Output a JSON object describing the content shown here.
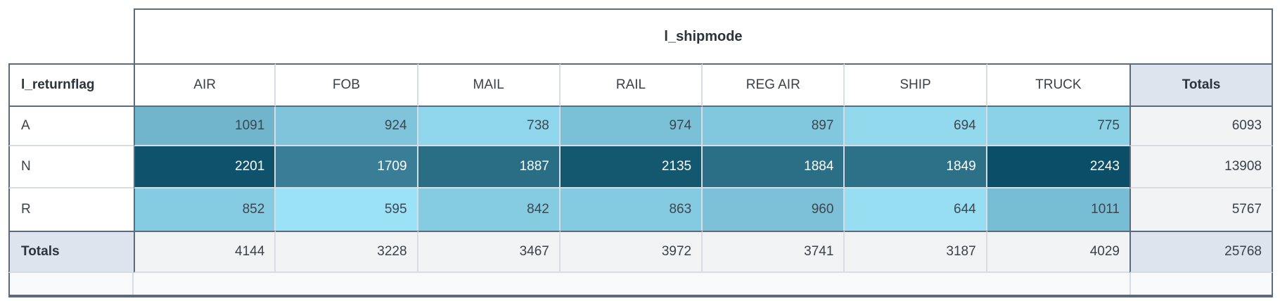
{
  "chart_data": {
    "type": "heatmap",
    "title": "l_shipmode",
    "row_dimension": "l_returnflag",
    "column_dimension": "l_shipmode",
    "columns": [
      "AIR",
      "FOB",
      "MAIL",
      "RAIL",
      "REG AIR",
      "SHIP",
      "TRUCK"
    ],
    "rows": [
      "A",
      "N",
      "R"
    ],
    "values": [
      [
        1091,
        924,
        738,
        974,
        897,
        694,
        775
      ],
      [
        2201,
        1709,
        1887,
        2135,
        1884,
        1849,
        2243
      ],
      [
        852,
        595,
        842,
        863,
        960,
        644,
        1011
      ]
    ],
    "row_totals": [
      6093,
      13908,
      5767
    ],
    "column_totals": [
      4144,
      3228,
      3467,
      3972,
      3741,
      3187,
      4029
    ],
    "grand_total": 25768,
    "totals_label": "Totals",
    "color_scale": {
      "min_value": 595,
      "max_value": 2243,
      "min_color": "#9ce2f7",
      "max_color": "#0a4e67"
    }
  },
  "table": {
    "column_group_title": "l_shipmode",
    "row_group_title": "l_returnflag",
    "totals_label": "Totals",
    "columns": [
      "AIR",
      "FOB",
      "MAIL",
      "RAIL",
      "REG AIR",
      "SHIP",
      "TRUCK"
    ],
    "rows": [
      {
        "label": "A",
        "total": "6093",
        "cells": [
          {
            "v": "1091",
            "bg": "#70b5cc",
            "fg": "#3d4650"
          },
          {
            "v": "924",
            "bg": "#7fc4da",
            "fg": "#3d4650"
          },
          {
            "v": "738",
            "bg": "#8fd5eb",
            "fg": "#3d4650"
          },
          {
            "v": "974",
            "bg": "#7ac0d6",
            "fg": "#3d4650"
          },
          {
            "v": "897",
            "bg": "#81c7dd",
            "fg": "#3d4650"
          },
          {
            "v": "694",
            "bg": "#93d9ee",
            "fg": "#3d4650"
          },
          {
            "v": "775",
            "bg": "#8cd2e7",
            "fg": "#3d4650"
          }
        ]
      },
      {
        "label": "N",
        "total": "13908",
        "cells": [
          {
            "v": "2201",
            "bg": "#0e526b",
            "fg": "#ffffff"
          },
          {
            "v": "1709",
            "bg": "#397e96",
            "fg": "#ffffff"
          },
          {
            "v": "1887",
            "bg": "#2a6e86",
            "fg": "#ffffff"
          },
          {
            "v": "2135",
            "bg": "#145870",
            "fg": "#ffffff"
          },
          {
            "v": "1884",
            "bg": "#2b6f87",
            "fg": "#ffffff"
          },
          {
            "v": "1849",
            "bg": "#2d7189",
            "fg": "#ffffff"
          },
          {
            "v": "2243",
            "bg": "#0a4e67",
            "fg": "#ffffff"
          }
        ]
      },
      {
        "label": "R",
        "total": "5767",
        "cells": [
          {
            "v": "852",
            "bg": "#85cbe1",
            "fg": "#3d4650"
          },
          {
            "v": "595",
            "bg": "#9ce2f7",
            "fg": "#3d4650"
          },
          {
            "v": "842",
            "bg": "#86cce1",
            "fg": "#3d4650"
          },
          {
            "v": "863",
            "bg": "#84cae0",
            "fg": "#3d4650"
          },
          {
            "v": "960",
            "bg": "#7cc1d7",
            "fg": "#3d4650"
          },
          {
            "v": "644",
            "bg": "#98def3",
            "fg": "#3d4650"
          },
          {
            "v": "1011",
            "bg": "#77bdd3",
            "fg": "#3d4650"
          }
        ]
      }
    ],
    "column_totals": [
      "4144",
      "3228",
      "3467",
      "3972",
      "3741",
      "3187",
      "4029"
    ],
    "grand_total": "25768"
  },
  "colors": {
    "dark_border": "#5b6b7e",
    "light_border": "#d8dde3",
    "totals_header_bg": "#dde4ee",
    "totals_value_bg": "#f1f3f5",
    "grand_total_bg": "#dde4ee",
    "empty_row_bg": "#f8f9fa",
    "header_text": "#2c333b",
    "cell_text": "#3d4650"
  }
}
